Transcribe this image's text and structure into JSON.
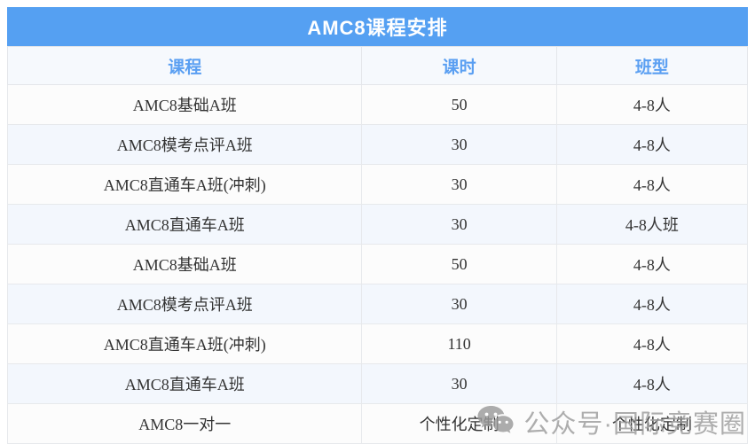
{
  "title": "AMC8课程安排",
  "table": {
    "columns": [
      "课程",
      "课时",
      "班型"
    ],
    "rows": [
      {
        "course": "AMC8基础A班",
        "hours": "50",
        "class_type": "4-8人"
      },
      {
        "course": "AMC8模考点评A班",
        "hours": "30",
        "class_type": "4-8人"
      },
      {
        "course": "AMC8直通车A班(冲刺)",
        "hours": "30",
        "class_type": "4-8人"
      },
      {
        "course": "AMC8直通车A班",
        "hours": "30",
        "class_type": "4-8人班"
      },
      {
        "course": "AMC8基础A班",
        "hours": "50",
        "class_type": "4-8人"
      },
      {
        "course": "AMC8模考点评A班",
        "hours": "30",
        "class_type": "4-8人"
      },
      {
        "course": "AMC8直通车A班(冲刺)",
        "hours": "110",
        "class_type": "4-8人"
      },
      {
        "course": "AMC8直通车A班",
        "hours": "30",
        "class_type": "4-8人"
      },
      {
        "course": "AMC8一对一",
        "hours": "个性化定制",
        "class_type": "个性化定制"
      }
    ]
  },
  "watermark": {
    "icon": "wechat-icon",
    "text": "公众号·国际竞赛圈"
  },
  "colors": {
    "title_bg": "#55a0f2",
    "title_text": "#ffffff",
    "column_header_text": "#5a9ff2",
    "column_header_bg": "#f6f9fd",
    "row_bg": "#fcfcfc",
    "row_alt_bg": "#f3f7fd",
    "border": "#e7e9ec",
    "cell_text": "#333333",
    "watermark_color": "#9b9b9b"
  }
}
